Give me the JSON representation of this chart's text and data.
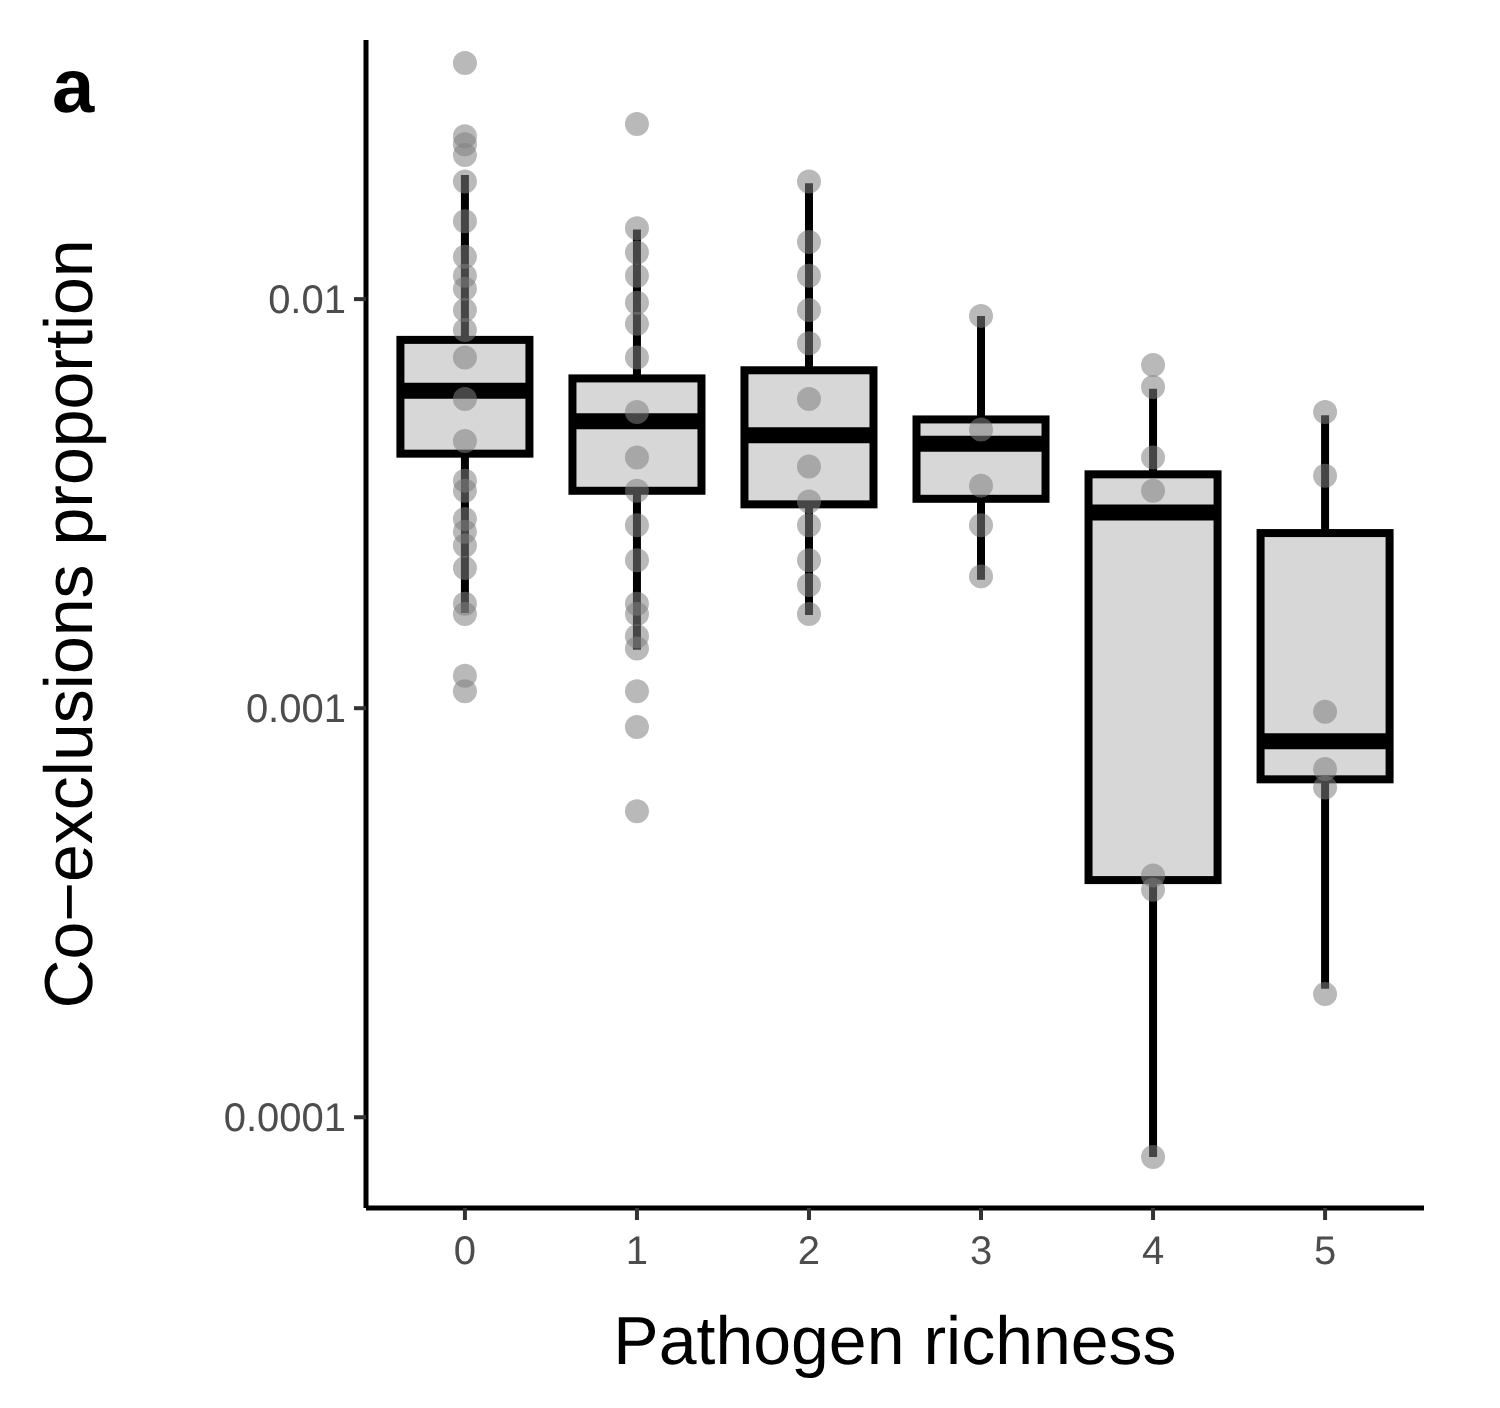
{
  "chart_data": {
    "type": "box",
    "title": "a",
    "xlabel": "Pathogen richness",
    "ylabel": "Co−exclusions proportion",
    "categories": [
      "0",
      "1",
      "2",
      "3",
      "4",
      "5"
    ],
    "log": true,
    "ylim": [
      6e-05,
      0.043
    ],
    "yticks": [
      0.0001,
      0.001,
      0.01
    ],
    "grid": false,
    "series": [
      {
        "color": "#d3d3d3",
        "boxes": [
          {
            "low": 0.00171,
            "q1": 0.00419,
            "median": 0.00597,
            "q3": 0.00795,
            "high": 0.0201
          },
          {
            "low": 0.00139,
            "q1": 0.0034,
            "median": 0.00503,
            "q3": 0.0064,
            "high": 0.0148
          },
          {
            "low": 0.00169,
            "q1": 0.00315,
            "median": 0.00465,
            "q3": 0.0067,
            "high": 0.0192
          },
          {
            "low": 0.00206,
            "q1": 0.00325,
            "median": 0.00443,
            "q3": 0.00508,
            "high": 0.0091
          },
          {
            "low": 8e-05,
            "q1": 0.00038,
            "median": 0.00301,
            "q3": 0.00373,
            "high": 0.00604
          },
          {
            "low": 0.000206,
            "q1": 0.00067,
            "median": 0.00083,
            "q3": 0.00268,
            "high": 0.0052
          }
        ]
      },
      {
        "type": "scatter",
        "color": "#7f7f7f",
        "marker": "circle",
        "x": [
          "0",
          "0",
          "0",
          "0",
          "0",
          "0",
          "0",
          "0",
          "0",
          "0",
          "0",
          "0",
          "0",
          "0",
          "0",
          "0",
          "0",
          "0",
          "0",
          "0",
          "0",
          "0",
          "0",
          "0",
          "1",
          "1",
          "1",
          "1",
          "1",
          "1",
          "1",
          "1",
          "1",
          "1",
          "1",
          "1",
          "1",
          "1",
          "1",
          "1",
          "1",
          "1",
          "1",
          "2",
          "2",
          "2",
          "2",
          "2",
          "2",
          "2",
          "2",
          "2",
          "2",
          "2",
          "2",
          "3",
          "3",
          "3",
          "3",
          "3",
          "4",
          "4",
          "4",
          "4",
          "4",
          "4",
          "4",
          "5",
          "5",
          "5",
          "5",
          "5",
          "5"
        ],
        "values": [
          0.0378,
          0.0239,
          0.0225,
          0.025,
          0.0194,
          0.0155,
          0.0127,
          0.0114,
          0.0106,
          0.0094,
          0.0084,
          0.0072,
          0.0057,
          0.0045,
          0.0036,
          0.0034,
          0.0029,
          0.0027,
          0.0025,
          0.0022,
          0.0018,
          0.0017,
          0.0012,
          0.0011,
          0.0268,
          0.0149,
          0.013,
          0.0114,
          0.0098,
          0.0087,
          0.0072,
          0.0053,
          0.0041,
          0.0034,
          0.0028,
          0.0023,
          0.0018,
          0.0017,
          0.0015,
          0.0014,
          0.0011,
          0.0009,
          0.00056,
          0.0194,
          0.0138,
          0.0114,
          0.0094,
          0.0078,
          0.0057,
          0.0039,
          0.0032,
          0.0028,
          0.0023,
          0.002,
          0.0017,
          0.0091,
          0.0048,
          0.0035,
          0.0028,
          0.0021,
          0.0069,
          0.0061,
          0.0041,
          0.0034,
          0.00039,
          0.00036,
          8e-05,
          0.0037,
          0.0053,
          0.00098,
          0.00071,
          0.00064,
          0.0002
        ]
      }
    ]
  }
}
